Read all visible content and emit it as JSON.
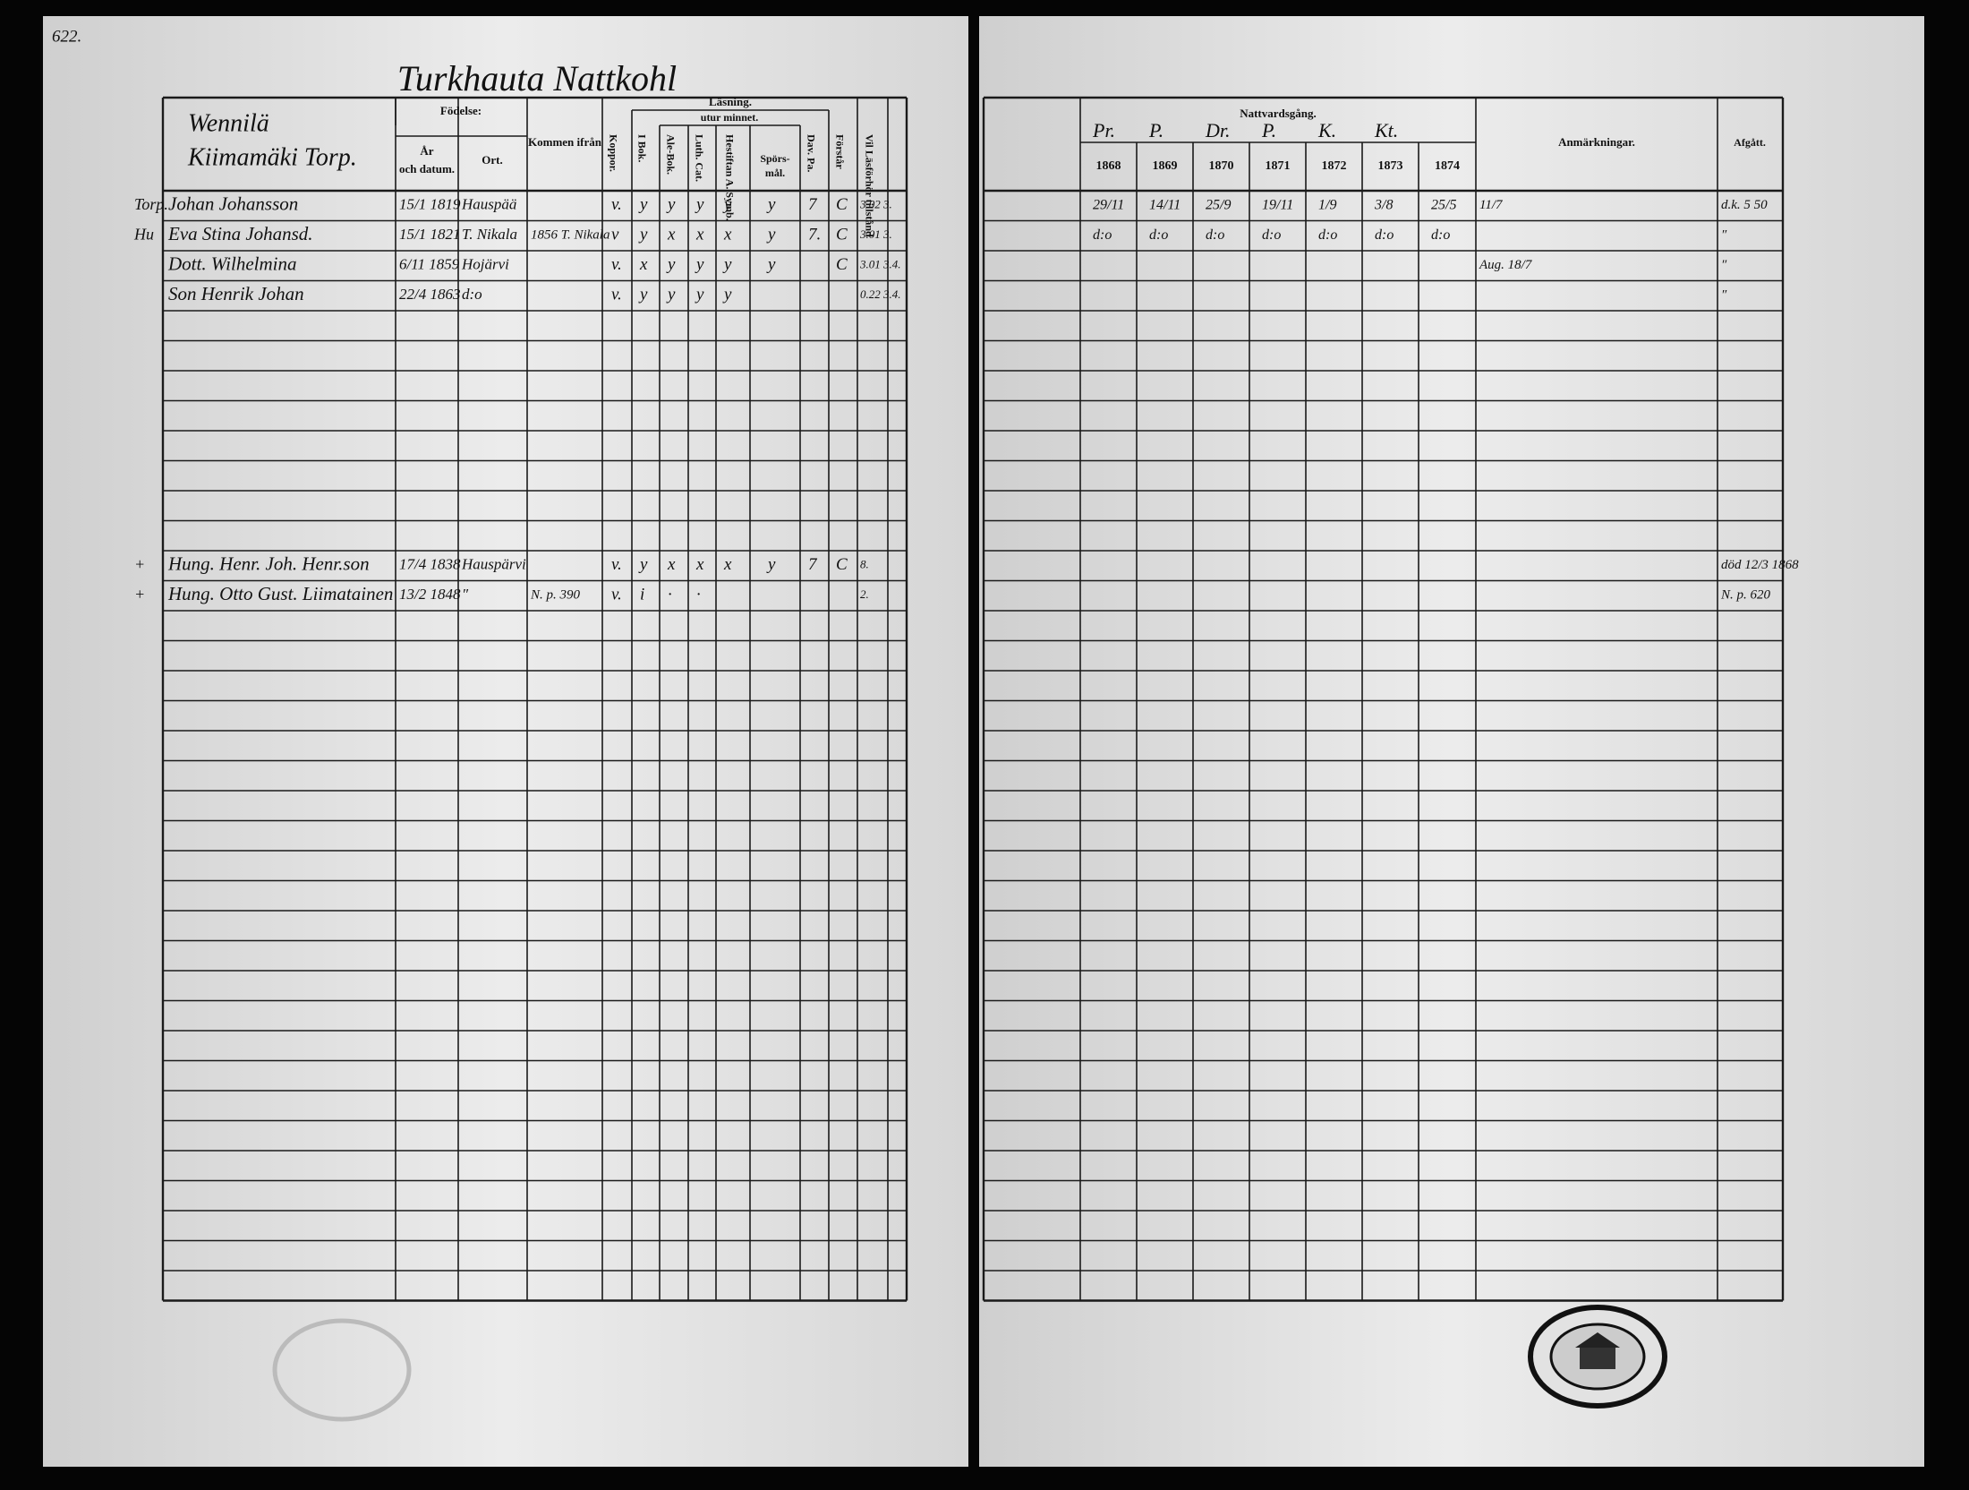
{
  "page_number": "622.",
  "title": "Turkhauta Nattkohl",
  "left_header": {
    "household_1": "Wennilä",
    "household_2": "Kiimamäki Torp.",
    "birth": "Födelse:",
    "year_1": "År",
    "year_2": "och datum.",
    "place": "Ort.",
    "from": "Kommen ifrån",
    "smallpox": "Koppor.",
    "reading": "Läsning.",
    "by_heart": "utur minnet.",
    "book": "I Bok.",
    "abc": "Ale-Bok.",
    "luther": "Luth. Cat.",
    "hist": "Hestiftan A. Symb.",
    "questions_1": "Spörs-",
    "questions_2": "mål.",
    "dav": "Dav. Pa.",
    "understanding": "Förstår",
    "permission": "Vil Läsförhör tillstånd"
  },
  "right_header": {
    "communion": "Nattvardsgång.",
    "priests": [
      "Pr.",
      "P.",
      "Dr.",
      "P.",
      "K.",
      "Kt."
    ],
    "years": [
      "1868",
      "1869",
      "1870",
      "1871",
      "1872",
      "1873",
      "1874"
    ],
    "remarks": "Anmärkningar.",
    "departed": "Afgått."
  },
  "rows": [
    {
      "row": 0,
      "prefix": "Torp.",
      "name": "Johan Johansson",
      "date": "15/1 1819",
      "place": "Hauspää",
      "smallpox": "v.",
      "reading": [
        "y",
        "y",
        "y",
        "y",
        "y",
        "7"
      ],
      "understanding": "C",
      "permission": "3.02 3.",
      "communion": [
        "29/11",
        "14/11",
        "25/9",
        "19/11",
        "1/9",
        "3/8",
        "25/5"
      ],
      "remark": "11/7",
      "departed": "d.k. 5 50"
    },
    {
      "row": 1,
      "prefix": "Hu",
      "name": "Eva Stina Johansd.",
      "date": "15/1 1821",
      "place": "T. Nikala",
      "from": "1856 T. Nikala",
      "smallpox": "v",
      "reading": [
        "y",
        "x",
        "x",
        "x",
        "y",
        "7."
      ],
      "understanding": "C",
      "permission": "3.01 3.",
      "communion": [
        "d:o",
        "d:o",
        "d:o",
        "d:o",
        "d:o",
        "d:o",
        "d:o"
      ],
      "departed": "″"
    },
    {
      "row": 2,
      "name": "Dott. Wilhelmina",
      "date": "6/11 1859",
      "place": "Hojärvi",
      "smallpox": "v.",
      "reading": [
        "x",
        "y",
        "y",
        "y",
        "y",
        null
      ],
      "understanding": "C",
      "permission": "3.01 3.4.",
      "remark": "Aug. 18/7",
      "departed": "″"
    },
    {
      "row": 3,
      "name": "Son Henrik Johan",
      "date": "22/4 1863",
      "place": "d:o",
      "smallpox": "v.",
      "reading": [
        "y",
        "y",
        "y",
        "y",
        null,
        null
      ],
      "permission": "0.22 3.4.",
      "departed": "″"
    },
    {
      "row": 12,
      "prefix": "+",
      "name": "Hung. Henr. Joh. Henr.son",
      "date": "17/4 1838",
      "place": "Hauspärvi",
      "smallpox": "v.",
      "reading": [
        "y",
        "x",
        "x",
        "x",
        "y",
        "7"
      ],
      "understanding": "C",
      "permission": "8.",
      "departed": "död 12/3 1868"
    },
    {
      "row": 13,
      "prefix": "+",
      "name": "Hung. Otto Gust. Liimatainen",
      "date": "13/2 1848",
      "place": "″",
      "from": "N. p. 390",
      "smallpox": "v.",
      "reading": [
        "i",
        "·",
        "·",
        null,
        null,
        null
      ],
      "permission": "2.",
      "departed": "N. p. 620"
    }
  ]
}
